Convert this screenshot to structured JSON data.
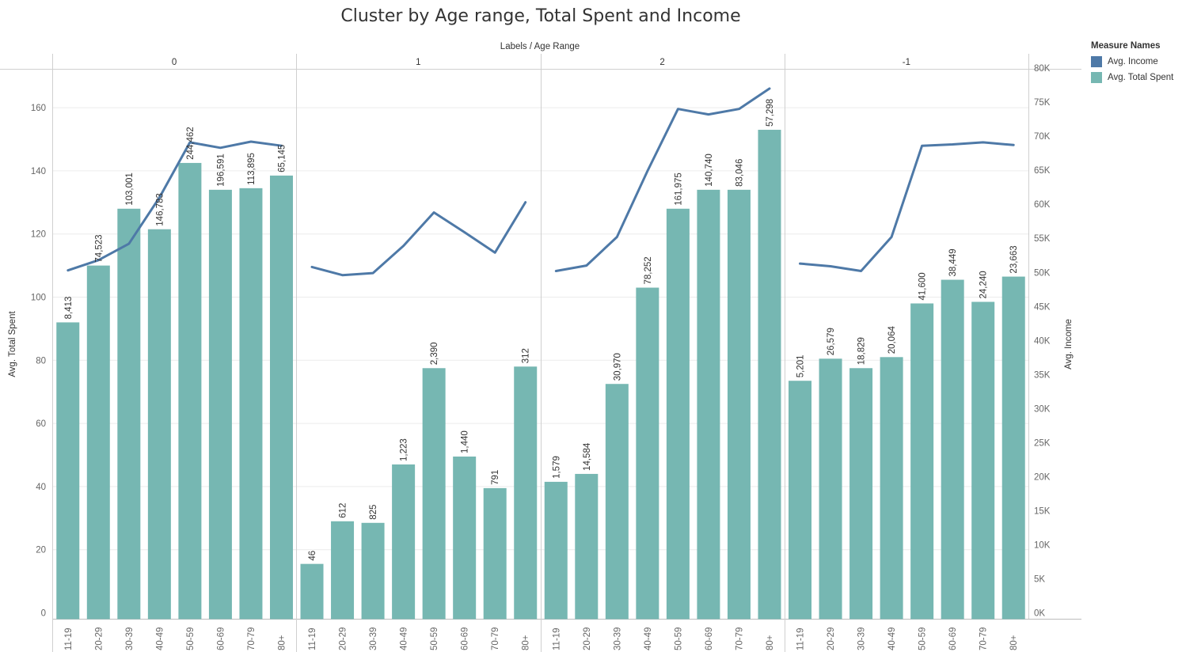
{
  "title": "Cluster by Age range, Total Spent and Income",
  "header_label": "Labels / Age Range",
  "legend": {
    "title": "Measure Names",
    "items": [
      {
        "label": "Avg. Income",
        "color": "#4e79a7"
      },
      {
        "label": "Avg. Total Spent",
        "color": "#76b7b2"
      }
    ]
  },
  "chart_data": {
    "type": "bar",
    "combo": "bar + line (dual axis)",
    "panel_field": "Labels",
    "panels": [
      "0",
      "1",
      "2",
      "-1"
    ],
    "categories": [
      "11-19",
      "20-29",
      "30-39",
      "40-49",
      "50-59",
      "60-69",
      "70-79",
      "80+"
    ],
    "bar_color": "#76b7b2",
    "line_color": "#4e79a7",
    "left_axis": {
      "label": "Avg. Total Spent",
      "ylim": [
        0,
        172
      ],
      "ticks": [
        "0",
        "20",
        "40",
        "60",
        "80",
        "100",
        "120",
        "140",
        "160"
      ]
    },
    "right_axis": {
      "label": "Avg. Income",
      "ylim": [
        0,
        79000
      ],
      "ticks": [
        "0K",
        "5K",
        "10K",
        "15K",
        "20K",
        "25K",
        "30K",
        "35K",
        "40K",
        "45K",
        "50K",
        "55K",
        "60K",
        "65K",
        "70K",
        "75K",
        "80K"
      ]
    },
    "series": [
      {
        "name": "Avg. Total Spent",
        "axis": "left",
        "values": [
          [
            92,
            110,
            128,
            121.5,
            142.5,
            134,
            134.5,
            138.5
          ],
          [
            15.5,
            29,
            28.5,
            47,
            77.5,
            49.5,
            39.5,
            78
          ],
          [
            41.5,
            44,
            72.5,
            103,
            128,
            134,
            134,
            153
          ],
          [
            73.5,
            80.5,
            77.5,
            81,
            98,
            105.5,
            98.5,
            106.5
          ]
        ]
      },
      {
        "name": "Avg. Income",
        "axis": "right",
        "values": [
          [
            50300,
            51800,
            54200,
            61000,
            69100,
            68300,
            69200,
            68600
          ],
          [
            50800,
            49600,
            49900,
            53900,
            58800,
            55900,
            52900,
            60300
          ],
          [
            50200,
            51000,
            55200,
            64900,
            74000,
            73200,
            74000,
            77000
          ],
          [
            51300,
            50900,
            50200,
            55200,
            68600,
            68800,
            69100,
            68700
          ]
        ]
      }
    ],
    "data_labels": [
      [
        "8,413",
        "74,523",
        "103,001",
        "146,783",
        "244,462",
        "196,591",
        "113,895",
        "65,145"
      ],
      [
        "46",
        "612",
        "825",
        "1,223",
        "2,390",
        "1,440",
        "791",
        "312"
      ],
      [
        "1,579",
        "14,584",
        "30,970",
        "78,252",
        "161,975",
        "140,740",
        "83,046",
        "57,298"
      ],
      [
        "5,201",
        "26,579",
        "18,829",
        "20,064",
        "41,600",
        "38,449",
        "24,240",
        "23,663"
      ]
    ]
  }
}
